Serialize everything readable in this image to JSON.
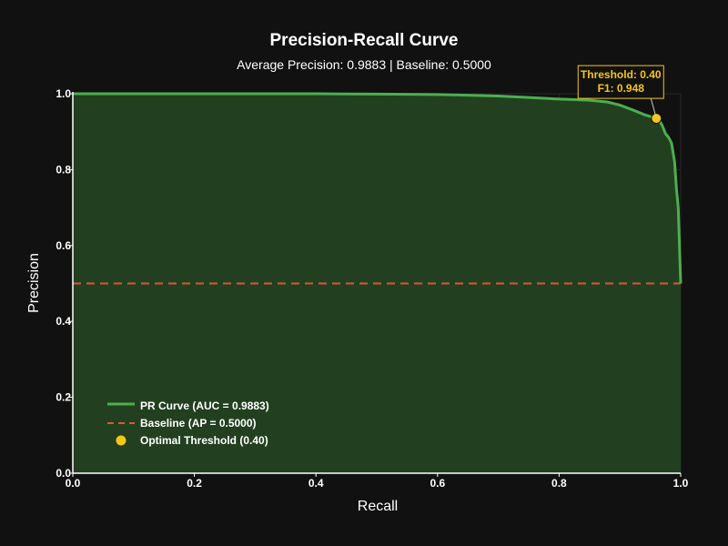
{
  "chart_data": {
    "type": "area",
    "title": "Precision-Recall Curve",
    "subtitle": "Average Precision: 0.9883 | Baseline: 0.5000",
    "xlabel": "Recall",
    "ylabel": "Precision",
    "xlim": [
      0,
      1
    ],
    "ylim": [
      0,
      1
    ],
    "xticks": [
      "0.0",
      "0.2",
      "0.4",
      "0.6",
      "0.8",
      "1.0"
    ],
    "yticks": [
      "0.0",
      "0.2",
      "0.4",
      "0.6",
      "0.8",
      "1.0"
    ],
    "grid": true,
    "legend_position": "bottom-left",
    "series": [
      {
        "name": "PR Curve (AUC = 0.9883)",
        "kind": "line-filled",
        "color": "#4caf50",
        "fill": "#22401f",
        "x": [
          0.0,
          0.1,
          0.2,
          0.3,
          0.4,
          0.5,
          0.6,
          0.65,
          0.7,
          0.75,
          0.8,
          0.85,
          0.88,
          0.9,
          0.92,
          0.94,
          0.95,
          0.96,
          0.965,
          0.97,
          0.975,
          0.98,
          0.985,
          0.99,
          0.993,
          0.996,
          0.998,
          1.0
        ],
        "y": [
          1.0,
          1.0,
          1.0,
          1.0,
          1.0,
          0.999,
          0.998,
          0.996,
          0.994,
          0.99,
          0.986,
          0.983,
          0.978,
          0.97,
          0.958,
          0.945,
          0.94,
          0.935,
          0.93,
          0.915,
          0.895,
          0.885,
          0.87,
          0.82,
          0.75,
          0.7,
          0.6,
          0.5
        ]
      },
      {
        "name": "Baseline (AP = 0.5000)",
        "kind": "dashed-line",
        "color": "#e0533a",
        "x": [
          0.0,
          1.0
        ],
        "y": [
          0.5,
          0.5
        ]
      },
      {
        "name": "Optimal Threshold (0.40)",
        "kind": "marker",
        "color": "#f5c518",
        "x": [
          0.96
        ],
        "y": [
          0.935
        ]
      }
    ],
    "annotation": {
      "lines": [
        "Threshold: 0.40",
        "F1: 0.948"
      ],
      "x": 0.96,
      "y": 0.935,
      "color": "#f5c518"
    }
  }
}
